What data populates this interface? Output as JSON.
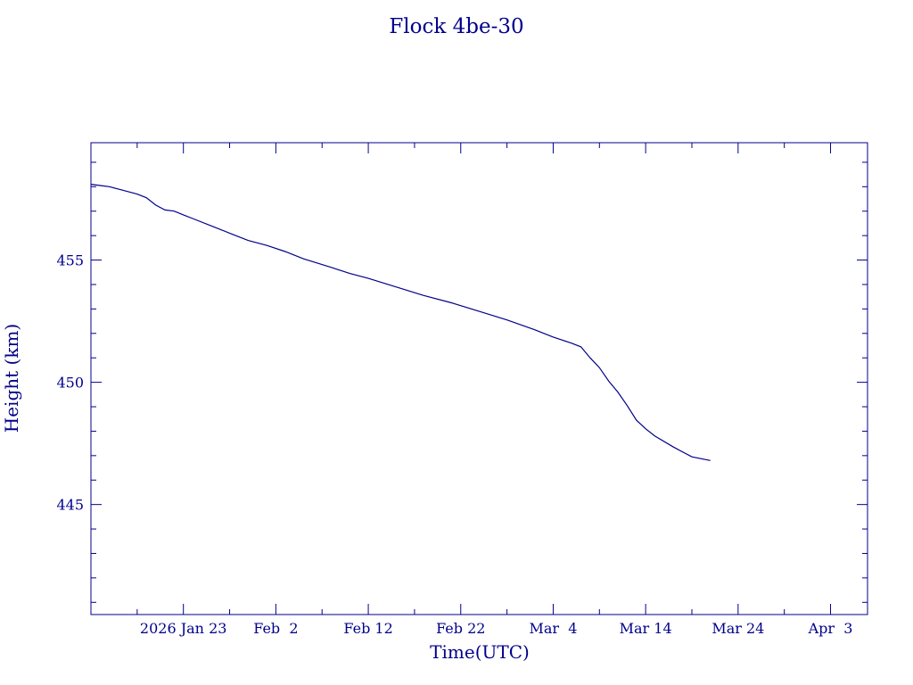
{
  "chart_data": {
    "type": "line",
    "title": "Flock 4be-30",
    "xlabel": "Time(UTC)",
    "ylabel": "Height (km)",
    "ylim": [
      440.5,
      459.8
    ],
    "xlim": [
      "2026-01-13T00:00",
      "2026-04-07T00:00"
    ],
    "x_tick_labels": [
      {
        "date": "2026-01-23",
        "label": "2026 Jan 23"
      },
      {
        "date": "2026-02-02",
        "label": "Feb  2"
      },
      {
        "date": "2026-02-12",
        "label": "Feb 12"
      },
      {
        "date": "2026-02-22",
        "label": "Feb 22"
      },
      {
        "date": "2026-03-04",
        "label": "Mar  4"
      },
      {
        "date": "2026-03-14",
        "label": "Mar 14"
      },
      {
        "date": "2026-03-24",
        "label": "Mar 24"
      },
      {
        "date": "2026-04-03",
        "label": "Apr  3"
      }
    ],
    "y_tick_labels": [
      445,
      450,
      455
    ],
    "grid": false,
    "color": "#00008b",
    "series": [
      {
        "x": [
          "2026-01-13",
          "2026-01-14",
          "2026-01-15",
          "2026-01-16",
          "2026-01-17",
          "2026-01-18",
          "2026-01-19",
          "2026-01-20",
          "2026-01-21",
          "2026-01-22",
          "2026-01-23",
          "2026-01-24",
          "2026-01-26",
          "2026-01-28",
          "2026-01-30",
          "2026-02-01",
          "2026-02-03",
          "2026-02-05",
          "2026-02-08",
          "2026-02-10",
          "2026-02-12",
          "2026-02-15",
          "2026-02-18",
          "2026-02-21",
          "2026-02-24",
          "2026-02-27",
          "2026-03-02",
          "2026-03-04",
          "2026-03-06",
          "2026-03-07",
          "2026-03-08",
          "2026-03-09",
          "2026-03-10",
          "2026-03-11",
          "2026-03-12",
          "2026-03-13",
          "2026-03-14",
          "2026-03-15",
          "2026-03-17",
          "2026-03-19",
          "2026-03-21"
        ],
        "y": [
          458.1,
          458.05,
          458.0,
          457.9,
          457.8,
          457.7,
          457.55,
          457.25,
          457.05,
          457.0,
          456.85,
          456.7,
          456.4,
          456.1,
          455.8,
          455.6,
          455.35,
          455.05,
          454.7,
          454.45,
          454.25,
          453.9,
          453.55,
          453.25,
          452.9,
          452.55,
          452.15,
          451.85,
          451.6,
          451.45,
          451.0,
          450.6,
          450.05,
          449.6,
          449.05,
          448.45,
          448.1,
          447.8,
          447.35,
          446.95,
          446.8
        ]
      }
    ]
  }
}
